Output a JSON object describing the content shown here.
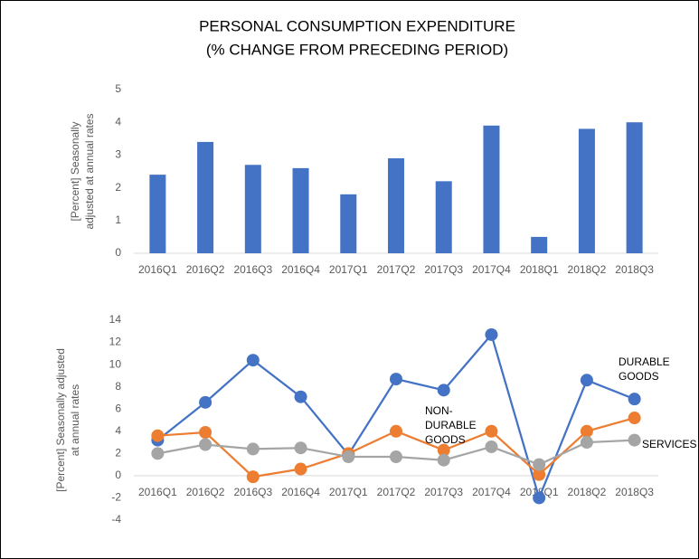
{
  "chart_data": [
    {
      "type": "bar",
      "title": "PERSONAL CONSUMPTION EXPENDITURE",
      "subtitle": "(% CHANGE FROM PRECEDING PERIOD)",
      "ylabel": [
        "[Percent] Seasonally",
        "adjusted at annual rates"
      ],
      "categories": [
        "2016Q1",
        "2016Q2",
        "2016Q3",
        "2016Q4",
        "2017Q1",
        "2017Q2",
        "2017Q3",
        "2017Q4",
        "2018Q1",
        "2018Q2",
        "2018Q3"
      ],
      "values": [
        2.4,
        3.4,
        2.7,
        2.6,
        1.8,
        2.9,
        2.2,
        3.9,
        0.5,
        3.8,
        4.0
      ],
      "color": "#4472c4",
      "ylim": [
        0,
        5
      ],
      "yticks": [
        0,
        1,
        2,
        3,
        4,
        5
      ],
      "grid": false
    },
    {
      "type": "line",
      "ylabel": [
        "[Percent] Seasonally adjusted",
        "at annual rates"
      ],
      "categories": [
        "2016Q1",
        "2016Q2",
        "2016Q3",
        "2016Q4",
        "2017Q1",
        "2017Q2",
        "2017Q3",
        "2017Q4",
        "2018Q1",
        "2018Q2",
        "2018Q3"
      ],
      "series": [
        {
          "name": "DURABLE GOODS",
          "color": "#4472c4",
          "values": [
            3.2,
            6.6,
            10.4,
            7.1,
            1.9,
            8.7,
            7.7,
            12.7,
            -2.0,
            8.6,
            6.9
          ]
        },
        {
          "name": "NON-DURABLE GOODS",
          "color": "#ed7d31",
          "values": [
            3.6,
            3.9,
            -0.1,
            0.6,
            2.0,
            4.0,
            2.3,
            4.0,
            0.1,
            4.0,
            5.2
          ]
        },
        {
          "name": "SERVICES",
          "color": "#a5a5a5",
          "values": [
            2.0,
            2.8,
            2.4,
            2.5,
            1.7,
            1.7,
            1.4,
            2.6,
            1.0,
            3.0,
            3.2
          ]
        }
      ],
      "ylim": [
        -4,
        14
      ],
      "yticks": [
        -4,
        -2,
        0,
        2,
        4,
        6,
        8,
        10,
        12,
        14
      ],
      "grid": false
    }
  ]
}
